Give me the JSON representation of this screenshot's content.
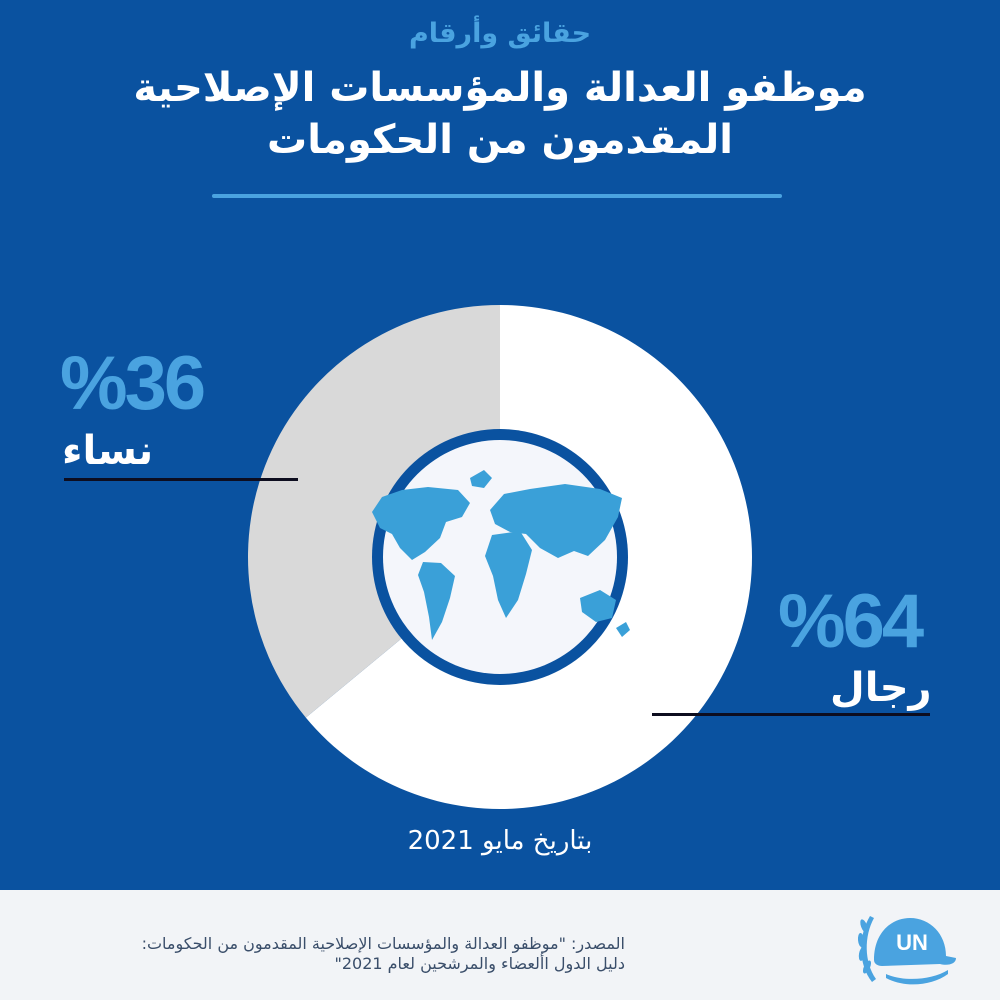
{
  "header": {
    "eyebrow": "حقائق وأرقام",
    "title_line1": "موظفو العدالة والمؤسسات الإصلاحية",
    "title_line2": "المقدمون من الحكومات"
  },
  "chart_data": {
    "type": "pie",
    "title": "موظفو العدالة والمؤسسات الإصلاحية المقدمون من الحكومات",
    "categories": [
      "نساء",
      "رجال"
    ],
    "values": [
      36,
      64
    ],
    "value_labels": [
      "%36",
      "%64"
    ],
    "colors": [
      "#d9d9d9",
      "#ffffff"
    ],
    "style": "donut"
  },
  "date_note": "بتاريخ مايو 2021",
  "footer": {
    "source_line1": "المصدر: \"موظفو العدالة والمؤسسات الإصلاحية المقدمون من الحكومات:",
    "source_line2": "دليل الدول األعضاء والمرشحين لعام 2021\"",
    "logo_text": "UN"
  },
  "colors": {
    "background": "#0a52a0",
    "accent": "#4aa3e0",
    "footer_bg": "#f2f4f7"
  },
  "icons": [
    "world-map-icon",
    "un-helmet-logo-icon"
  ]
}
